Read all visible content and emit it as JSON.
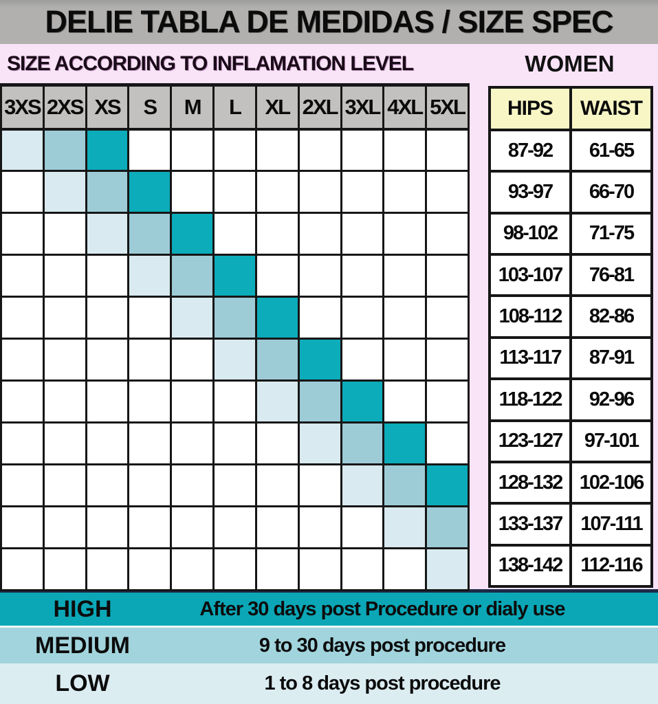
{
  "title": "DELIE TABLA DE MEDIDAS / SIZE SPEC",
  "subtitle_left": "SIZE ACCORDING TO INFLAMATION LEVEL",
  "subtitle_right": "WOMEN",
  "colors": {
    "pink_background": "#f9e3f7",
    "title_bar_gray": "#b1b0ae",
    "grid_header_gray": "#c2c1bf",
    "measure_header_yellow": "#f8f6c5",
    "level_low": "#d9eaf0",
    "level_medium": "#9dccd7",
    "level_high": "#0cacba",
    "legend_high_bg": "#0ba7b7",
    "legend_medium_bg": "#a2d4dd",
    "legend_low_bg": "#dcedf2",
    "navy_line": "#1c2b47"
  },
  "size_grid": {
    "columns": [
      "3XS",
      "2XS",
      "XS",
      "S",
      "M",
      "L",
      "XL",
      "2XL",
      "3XL",
      "4XL",
      "5XL"
    ],
    "rows": [
      {
        "low": "3XS",
        "medium": "2XS",
        "high": "XS"
      },
      {
        "low": "2XS",
        "medium": "XS",
        "high": "S"
      },
      {
        "low": "XS",
        "medium": "S",
        "high": "M"
      },
      {
        "low": "S",
        "medium": "M",
        "high": "L"
      },
      {
        "low": "M",
        "medium": "L",
        "high": "XL"
      },
      {
        "low": "L",
        "medium": "XL",
        "high": "2XL"
      },
      {
        "low": "XL",
        "medium": "2XL",
        "high": "3XL"
      },
      {
        "low": "2XL",
        "medium": "3XL",
        "high": "4XL"
      },
      {
        "low": "3XL",
        "medium": "4XL",
        "high": "5XL"
      },
      {
        "low": "4XL",
        "medium": "5XL",
        "high": null
      },
      {
        "low": "5XL",
        "medium": null,
        "high": null
      }
    ]
  },
  "measurements": {
    "headers": [
      "HIPS",
      "WAIST"
    ],
    "rows": [
      [
        "87-92",
        "61-65"
      ],
      [
        "93-97",
        "66-70"
      ],
      [
        "98-102",
        "71-75"
      ],
      [
        "103-107",
        "76-81"
      ],
      [
        "108-112",
        "82-86"
      ],
      [
        "113-117",
        "87-91"
      ],
      [
        "118-122",
        "92-96"
      ],
      [
        "123-127",
        "97-101"
      ],
      [
        "128-132",
        "102-106"
      ],
      [
        "133-137",
        "107-111"
      ],
      [
        "138-142",
        "112-116"
      ]
    ]
  },
  "legend": [
    {
      "label": "HIGH",
      "description": "After 30 days post Procedure or dialy use",
      "bg": "#0ba7b7"
    },
    {
      "label": "MEDIUM",
      "description": "9 to 30 days post procedure",
      "bg": "#a2d4dd"
    },
    {
      "label": "LOW",
      "description": "1 to 8 days post procedure",
      "bg": "#dcedf2"
    }
  ],
  "chart_data": [
    {
      "type": "heatmap",
      "title": "SIZE ACCORDING TO INFLAMATION LEVEL",
      "x_labels": [
        "3XS",
        "2XS",
        "XS",
        "S",
        "M",
        "L",
        "XL",
        "2XL",
        "3XL",
        "4XL",
        "5XL"
      ],
      "n_rows": 11,
      "cell_rule": "for data row i (0-indexed): LOW shade at column i, MEDIUM shade at column i+1, HIGH shade at column i+2; all other cells white; cells beyond column 10 are clipped",
      "levels": {
        "LOW": "#d9eaf0",
        "MEDIUM": "#9dccd7",
        "HIGH": "#0cacba"
      },
      "legend_position": "bottom",
      "grid": true
    },
    {
      "type": "table",
      "title": "WOMEN",
      "columns": [
        "HIPS",
        "WAIST"
      ],
      "rows": [
        [
          "87-92",
          "61-65"
        ],
        [
          "93-97",
          "66-70"
        ],
        [
          "98-102",
          "71-75"
        ],
        [
          "103-107",
          "76-81"
        ],
        [
          "108-112",
          "82-86"
        ],
        [
          "113-117",
          "87-91"
        ],
        [
          "118-122",
          "92-96"
        ],
        [
          "123-127",
          "97-101"
        ],
        [
          "128-132",
          "102-106"
        ],
        [
          "133-137",
          "107-111"
        ],
        [
          "138-142",
          "112-116"
        ]
      ]
    }
  ]
}
